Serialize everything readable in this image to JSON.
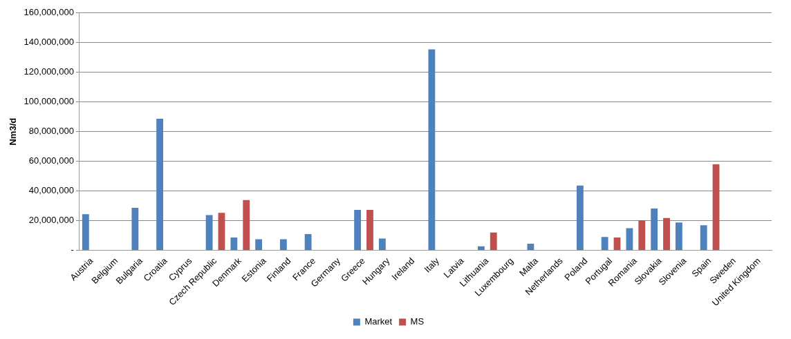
{
  "chart_data": {
    "type": "bar",
    "ylabel": "Nm3/d",
    "categories": [
      "Austria",
      "Belgium",
      "Bulgaria",
      "Croatia",
      "Cyprus",
      "Czech Republic",
      "Denmark",
      "Estonia",
      "Finland",
      "France",
      "Germany",
      "Greece",
      "Hungary",
      "Ireland",
      "Italy",
      "Latvia",
      "Lithuania",
      "Luxembourg",
      "Malta",
      "Netherlands",
      "Poland",
      "Portugal",
      "Romania",
      "Slovakia",
      "Slovenia",
      "Spain",
      "Sweden",
      "United Kingdom"
    ],
    "series": [
      {
        "name": "Market",
        "color": "#4f81bd",
        "values": [
          24300000,
          0,
          28700000,
          88700000,
          0,
          23800000,
          8600000,
          7500000,
          7500000,
          11000000,
          0,
          27300000,
          8000000,
          0,
          135500000,
          0,
          2700000,
          0,
          4500000,
          0,
          43700000,
          9000000,
          14900000,
          28200000,
          18800000,
          16900000,
          0,
          0
        ]
      },
      {
        "name": "MS",
        "color": "#c0504d",
        "values": [
          0,
          0,
          0,
          0,
          0,
          25300000,
          33900000,
          0,
          0,
          0,
          0,
          27300000,
          0,
          0,
          0,
          0,
          12000000,
          0,
          0,
          0,
          0,
          8600000,
          20300000,
          21800000,
          0,
          58000000,
          0,
          0
        ]
      }
    ],
    "ylim": [
      0,
      160000000
    ],
    "yticks": [
      {
        "value": 0,
        "label": "-"
      },
      {
        "value": 20000000,
        "label": "20,000,000"
      },
      {
        "value": 40000000,
        "label": "40,000,000"
      },
      {
        "value": 60000000,
        "label": "60,000,000"
      },
      {
        "value": 80000000,
        "label": "80,000,000"
      },
      {
        "value": 100000000,
        "label": "100,000,000"
      },
      {
        "value": 120000000,
        "label": "120,000,000"
      },
      {
        "value": 140000000,
        "label": "140,000,000"
      },
      {
        "value": 160000000,
        "label": "160,000,000"
      }
    ],
    "grid": "y",
    "legend": "bottom"
  }
}
